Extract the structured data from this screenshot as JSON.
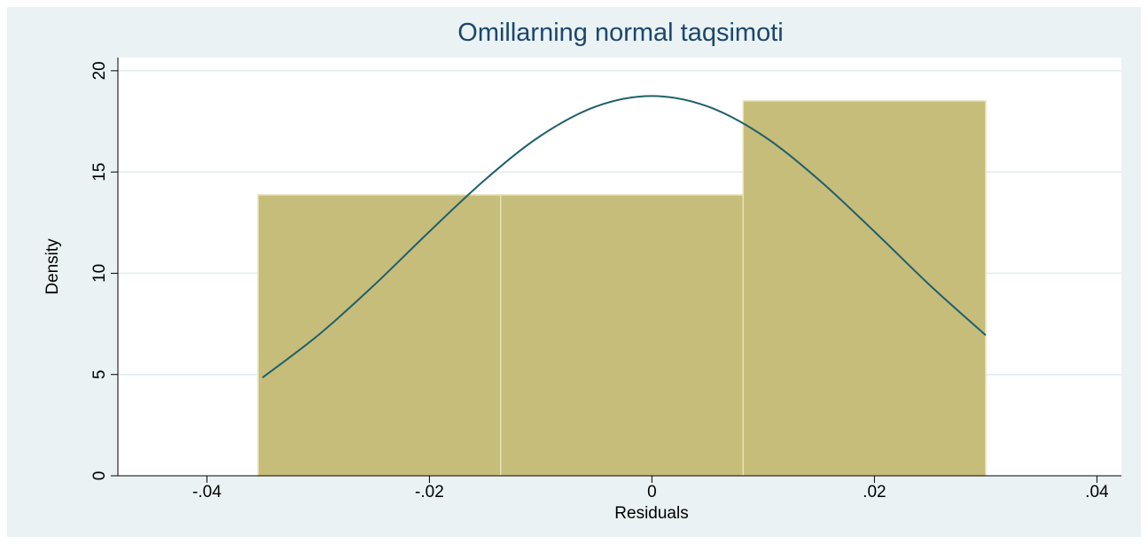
{
  "chart_data": {
    "type": "histogram",
    "title": "Omillarning normal taqsimoti",
    "xlabel": "Residuals",
    "ylabel": "Density",
    "bins": [
      -0.0354,
      -0.0136,
      0.0082,
      0.03
    ],
    "values": [
      13.87,
      13.87,
      18.51
    ],
    "color": "#c6bd7a",
    "curve": {
      "color": "#1f5f6b",
      "x": [
        -0.035,
        -0.03,
        -0.025,
        -0.02,
        -0.015,
        -0.01,
        -0.005,
        0,
        0.005,
        0.01,
        0.015,
        0.02,
        0.025,
        0.03
      ],
      "y": [
        4.85,
        6.94,
        9.4,
        12.06,
        14.62,
        16.79,
        18.24,
        18.75,
        18.24,
        16.79,
        14.62,
        12.06,
        9.4,
        6.94
      ]
    },
    "xlim": [
      -0.048,
      0.0422
    ],
    "ylim": [
      0,
      20.65
    ],
    "xticks": [
      {
        "value": -0.04,
        "label": "-.04"
      },
      {
        "value": -0.02,
        "label": "-.02"
      },
      0,
      {
        "value": 0.02,
        "label": ".02"
      },
      {
        "value": 0.04,
        "label": ".04"
      }
    ],
    "yticks": [
      0,
      5,
      10,
      15,
      20
    ],
    "grid": true
  }
}
